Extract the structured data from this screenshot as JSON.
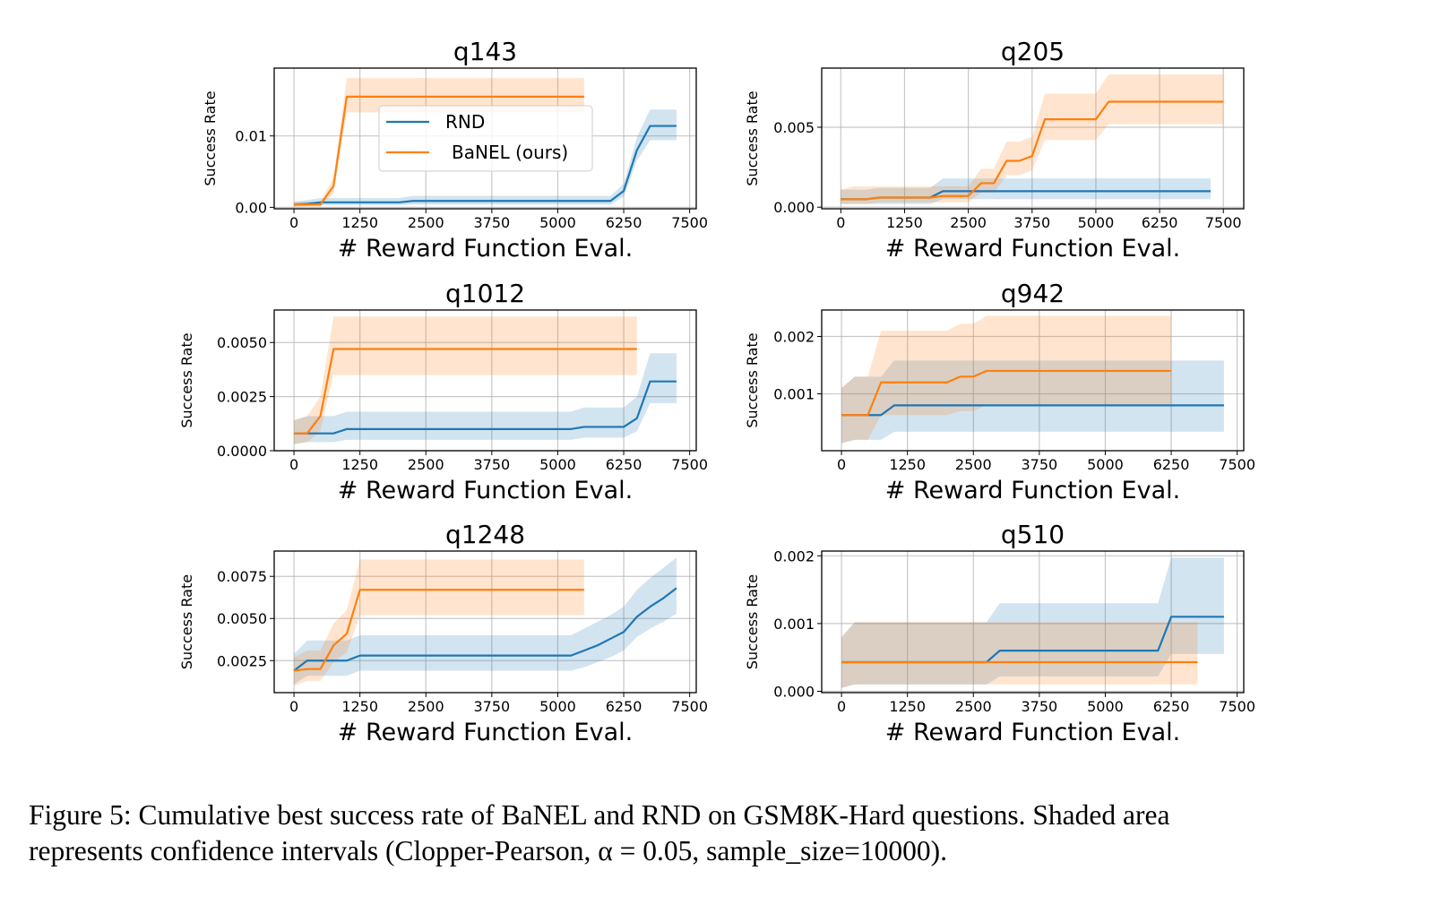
{
  "figure": {
    "caption_line1": "Figure 5: Cumulative best success rate of BaNEL and RND on GSM8K-Hard questions. Shaded area",
    "caption_line2": "represents confidence intervals (Clopper-Pearson, α = 0.05, sample_size=10000)."
  },
  "colors": {
    "RND": "#1f77b4",
    "BaNEL": "#ff7f0e",
    "RND_band": "rgba(31,119,180,0.2)",
    "BaNEL_band": "rgba(255,127,14,0.2)",
    "grid": "#b0b0b0"
  },
  "chart_data": [
    {
      "type": "line",
      "title": "q143",
      "xlabel": "# Reward Function Eval.",
      "ylabel": "Success Rate",
      "xlim": [
        -375,
        7625
      ],
      "ylim": [
        -0.0002,
        0.0195
      ],
      "xticks": [
        0,
        1250,
        2500,
        3750,
        5000,
        6250,
        7500
      ],
      "xtick_labels": [
        "0",
        "1250",
        "2500",
        "3750",
        "5000",
        "6250",
        "7500"
      ],
      "yticks": [
        0.0,
        0.01
      ],
      "ytick_labels": [
        "0.00",
        "0.01"
      ],
      "grid": true,
      "legend": {
        "placement": "upper-center",
        "entries": [
          "RND",
          "BaNEL (ours)"
        ]
      },
      "series": [
        {
          "name": "RND",
          "x": [
            0,
            250,
            500,
            750,
            1000,
            1250,
            1500,
            1750,
            2000,
            2250,
            2500,
            3750,
            5000,
            6000,
            6250,
            6500,
            6750,
            7000,
            7250
          ],
          "y": [
            0.0004,
            0.0005,
            0.0007,
            0.0007,
            0.0007,
            0.0007,
            0.0007,
            0.0007,
            0.0007,
            0.0009,
            0.0009,
            0.0009,
            0.0009,
            0.0009,
            0.0023,
            0.008,
            0.0114,
            0.0114,
            0.0114
          ],
          "lower": [
            0.0001,
            0.0002,
            0.0003,
            0.0003,
            0.0003,
            0.0003,
            0.0003,
            0.0003,
            0.0003,
            0.0004,
            0.0004,
            0.0004,
            0.0004,
            0.0004,
            0.0015,
            0.0065,
            0.0094,
            0.0094,
            0.0094
          ],
          "upper": [
            0.0008,
            0.001,
            0.0013,
            0.0013,
            0.0013,
            0.0013,
            0.0013,
            0.0013,
            0.0013,
            0.0016,
            0.0016,
            0.0016,
            0.0016,
            0.0016,
            0.0033,
            0.0098,
            0.0137,
            0.0137,
            0.0137
          ]
        },
        {
          "name": "BaNEL (ours)",
          "x": [
            0,
            250,
            500,
            750,
            1000,
            1250,
            2500,
            3750,
            5000,
            5500
          ],
          "y": [
            0.0004,
            0.0004,
            0.0004,
            0.003,
            0.0155,
            0.0155,
            0.0155,
            0.0155,
            0.0155,
            0.0155
          ],
          "lower": [
            0.0001,
            0.0001,
            0.0001,
            0.002,
            0.0133,
            0.0133,
            0.0133,
            0.0133,
            0.0133,
            0.0133
          ],
          "upper": [
            0.0008,
            0.0008,
            0.0008,
            0.0042,
            0.0181,
            0.0181,
            0.0181,
            0.0181,
            0.0181,
            0.0181
          ]
        }
      ]
    },
    {
      "type": "line",
      "title": "q205",
      "xlabel": "# Reward Function Eval.",
      "ylabel": "Success Rate",
      "xlim": [
        -375,
        7900
      ],
      "ylim": [
        -0.0001,
        0.0087
      ],
      "xticks": [
        0,
        1250,
        2500,
        3750,
        5000,
        6250,
        7500
      ],
      "xtick_labels": [
        "0",
        "1250",
        "2500",
        "3750",
        "5000",
        "6250",
        "7500"
      ],
      "yticks": [
        0.0,
        0.005
      ],
      "ytick_labels": [
        "0.000",
        "0.005"
      ],
      "grid": true,
      "series": [
        {
          "name": "RND",
          "x": [
            0,
            250,
            500,
            750,
            1000,
            1250,
            1500,
            1750,
            2000,
            2500,
            3750,
            5000,
            6250,
            7250
          ],
          "y": [
            0.0005,
            0.0005,
            0.0005,
            0.0006,
            0.0006,
            0.0006,
            0.0006,
            0.0006,
            0.001,
            0.001,
            0.001,
            0.001,
            0.001,
            0.001
          ],
          "lower": [
            0.0002,
            0.0002,
            0.0002,
            0.0002,
            0.0002,
            0.0002,
            0.0002,
            0.0002,
            0.0005,
            0.0005,
            0.0005,
            0.0005,
            0.0005,
            0.0005
          ],
          "upper": [
            0.0011,
            0.0011,
            0.0011,
            0.0012,
            0.0012,
            0.0012,
            0.0012,
            0.0012,
            0.0018,
            0.0018,
            0.0018,
            0.0018,
            0.0018,
            0.0018
          ]
        },
        {
          "name": "BaNEL (ours)",
          "x": [
            0,
            250,
            500,
            750,
            1000,
            1250,
            1500,
            1750,
            2000,
            2250,
            2500,
            2750,
            3000,
            3250,
            3500,
            3750,
            4000,
            4250,
            4500,
            4750,
            5000,
            5250,
            5500,
            6250,
            7500
          ],
          "y": [
            0.0005,
            0.0005,
            0.0005,
            0.0006,
            0.0006,
            0.0006,
            0.0006,
            0.0006,
            0.0007,
            0.0007,
            0.0007,
            0.0015,
            0.0015,
            0.0029,
            0.0029,
            0.0032,
            0.0055,
            0.0055,
            0.0055,
            0.0055,
            0.0055,
            0.0066,
            0.0066,
            0.0066,
            0.0066
          ],
          "lower": [
            0.0002,
            0.0002,
            0.0002,
            0.0003,
            0.0003,
            0.0003,
            0.0003,
            0.0003,
            0.0003,
            0.0003,
            0.0003,
            0.0009,
            0.0009,
            0.002,
            0.002,
            0.0023,
            0.0042,
            0.0042,
            0.0042,
            0.0042,
            0.0042,
            0.0052,
            0.0052,
            0.0052,
            0.0052
          ],
          "upper": [
            0.0011,
            0.0013,
            0.0013,
            0.0013,
            0.0013,
            0.0013,
            0.0013,
            0.0013,
            0.0013,
            0.0013,
            0.0013,
            0.0024,
            0.0024,
            0.0041,
            0.0041,
            0.0044,
            0.0071,
            0.0071,
            0.0071,
            0.0071,
            0.0071,
            0.0083,
            0.0083,
            0.0083,
            0.0083
          ]
        }
      ]
    },
    {
      "type": "line",
      "title": "q1012",
      "xlabel": "# Reward Function Eval.",
      "ylabel": "Success Rate",
      "xlim": [
        -375,
        7625
      ],
      "ylim": [
        0.0,
        0.0065
      ],
      "xticks": [
        0,
        1250,
        2500,
        3750,
        5000,
        6250,
        7500
      ],
      "xtick_labels": [
        "0",
        "1250",
        "2500",
        "3750",
        "5000",
        "6250",
        "7500"
      ],
      "yticks": [
        0.0,
        0.0025,
        0.005
      ],
      "ytick_labels": [
        "0.0000",
        "0.0025",
        "0.0050"
      ],
      "grid": true,
      "series": [
        {
          "name": "RND",
          "x": [
            0,
            250,
            500,
            750,
            1000,
            1250,
            2500,
            3750,
            5000,
            5250,
            5500,
            6250,
            6500,
            6750,
            7000,
            7250
          ],
          "y": [
            0.0008,
            0.0008,
            0.0008,
            0.0008,
            0.001,
            0.001,
            0.001,
            0.001,
            0.001,
            0.001,
            0.0011,
            0.0011,
            0.0015,
            0.0032,
            0.0032,
            0.0032
          ],
          "lower": [
            0.0003,
            0.0004,
            0.0004,
            0.0004,
            0.0005,
            0.0005,
            0.0005,
            0.0005,
            0.0005,
            0.0005,
            0.0006,
            0.0006,
            0.0009,
            0.0022,
            0.0022,
            0.0022
          ],
          "upper": [
            0.0014,
            0.0016,
            0.0016,
            0.0016,
            0.0018,
            0.0018,
            0.0018,
            0.0018,
            0.0018,
            0.0018,
            0.002,
            0.002,
            0.0025,
            0.0045,
            0.0045,
            0.0045
          ]
        },
        {
          "name": "BaNEL (ours)",
          "x": [
            0,
            250,
            500,
            750,
            1000,
            1250,
            2500,
            3750,
            5000,
            6250,
            6500
          ],
          "y": [
            0.0008,
            0.0008,
            0.0016,
            0.0047,
            0.0047,
            0.0047,
            0.0047,
            0.0047,
            0.0047,
            0.0047,
            0.0047
          ],
          "lower": [
            0.0003,
            0.0004,
            0.0009,
            0.0035,
            0.0035,
            0.0035,
            0.0035,
            0.0035,
            0.0035,
            0.0035,
            0.0035
          ],
          "upper": [
            0.0014,
            0.0016,
            0.0025,
            0.0062,
            0.0062,
            0.0062,
            0.0062,
            0.0062,
            0.0062,
            0.0062,
            0.0062
          ]
        }
      ]
    },
    {
      "type": "line",
      "title": "q942",
      "xlabel": "# Reward Function Eval.",
      "ylabel": "Success Rate",
      "xlim": [
        -375,
        7625
      ],
      "ylim": [
        1e-05,
        0.00246
      ],
      "xticks": [
        0,
        1250,
        2500,
        3750,
        5000,
        6250,
        7500
      ],
      "xtick_labels": [
        "0",
        "1250",
        "2500",
        "3750",
        "5000",
        "6250",
        "7500"
      ],
      "yticks": [
        0.001,
        0.002
      ],
      "ytick_labels": [
        "0.001",
        "0.002"
      ],
      "grid": true,
      "series": [
        {
          "name": "RND",
          "x": [
            0,
            250,
            500,
            750,
            1000,
            1250,
            2500,
            2750,
            3750,
            5000,
            6250,
            7250
          ],
          "y": [
            0.00063,
            0.00063,
            0.00063,
            0.00063,
            0.0008,
            0.0008,
            0.0008,
            0.0008,
            0.0008,
            0.0008,
            0.0008,
            0.0008
          ],
          "lower": [
            0.00014,
            0.0002,
            0.0002,
            0.0002,
            0.00034,
            0.00034,
            0.00034,
            0.00034,
            0.00034,
            0.00034,
            0.00034,
            0.00034
          ],
          "upper": [
            0.0011,
            0.0013,
            0.0013,
            0.0013,
            0.00158,
            0.00158,
            0.00158,
            0.00158,
            0.00158,
            0.00158,
            0.00158,
            0.00158
          ]
        },
        {
          "name": "BaNEL (ours)",
          "x": [
            0,
            250,
            500,
            750,
            1000,
            1250,
            2000,
            2250,
            2500,
            2750,
            3750,
            5000,
            6250
          ],
          "y": [
            0.00063,
            0.00063,
            0.00063,
            0.0012,
            0.0012,
            0.0012,
            0.0012,
            0.0013,
            0.0013,
            0.0014,
            0.0014,
            0.0014,
            0.0014
          ],
          "lower": [
            0.00014,
            0.0002,
            0.0002,
            0.00063,
            0.00063,
            0.00063,
            0.00063,
            0.0007,
            0.0007,
            0.0008,
            0.0008,
            0.0008,
            0.0008
          ],
          "upper": [
            0.0011,
            0.0013,
            0.0013,
            0.0021,
            0.0021,
            0.0021,
            0.0021,
            0.00222,
            0.00222,
            0.00236,
            0.00236,
            0.00236,
            0.00236
          ]
        }
      ]
    },
    {
      "type": "line",
      "title": "q1248",
      "xlabel": "# Reward Function Eval.",
      "ylabel": "Success Rate",
      "xlim": [
        -375,
        7625
      ],
      "ylim": [
        0.0006,
        0.009
      ],
      "xticks": [
        0,
        1250,
        2500,
        3750,
        5000,
        6250,
        7500
      ],
      "xtick_labels": [
        "0",
        "1250",
        "2500",
        "3750",
        "5000",
        "6250",
        "7500"
      ],
      "yticks": [
        0.0025,
        0.005,
        0.0075
      ],
      "ytick_labels": [
        "0.0025",
        "0.0050",
        "0.0075"
      ],
      "grid": true,
      "series": [
        {
          "name": "RND",
          "x": [
            0,
            250,
            500,
            750,
            1000,
            1250,
            2500,
            3750,
            5000,
            5250,
            5500,
            5750,
            6000,
            6250,
            6500,
            6750,
            7000,
            7250
          ],
          "y": [
            0.0019,
            0.0025,
            0.0025,
            0.0025,
            0.0025,
            0.0028,
            0.0028,
            0.0028,
            0.0028,
            0.0028,
            0.0031,
            0.0034,
            0.0038,
            0.0042,
            0.0051,
            0.0057,
            0.0062,
            0.0068
          ],
          "lower": [
            0.0011,
            0.0016,
            0.0016,
            0.0016,
            0.0016,
            0.0019,
            0.0019,
            0.0019,
            0.0019,
            0.0019,
            0.0021,
            0.0024,
            0.0027,
            0.0031,
            0.0039,
            0.0044,
            0.0048,
            0.0053
          ],
          "upper": [
            0.0029,
            0.0037,
            0.0037,
            0.0037,
            0.0037,
            0.004,
            0.004,
            0.004,
            0.004,
            0.004,
            0.0044,
            0.0048,
            0.0052,
            0.0057,
            0.0067,
            0.0074,
            0.008,
            0.0086
          ]
        },
        {
          "name": "BaNEL (ours)",
          "x": [
            0,
            250,
            500,
            750,
            1000,
            1250,
            2500,
            3750,
            5000,
            5500
          ],
          "y": [
            0.0019,
            0.002,
            0.002,
            0.0034,
            0.0041,
            0.0067,
            0.0067,
            0.0067,
            0.0067,
            0.0067
          ],
          "lower": [
            0.001,
            0.0013,
            0.0013,
            0.0024,
            0.003,
            0.0052,
            0.0052,
            0.0052,
            0.0052,
            0.0052
          ],
          "upper": [
            0.0027,
            0.0031,
            0.0031,
            0.0047,
            0.0055,
            0.0085,
            0.0085,
            0.0085,
            0.0085,
            0.0085
          ]
        }
      ]
    },
    {
      "type": "line",
      "title": "q510",
      "xlabel": "# Reward Function Eval.",
      "ylabel": "Success Rate",
      "xlim": [
        -375,
        7625
      ],
      "ylim": [
        -2e-05,
        0.00207
      ],
      "xticks": [
        0,
        1250,
        2500,
        3750,
        5000,
        6250,
        7500
      ],
      "xtick_labels": [
        "0",
        "1250",
        "2500",
        "3750",
        "5000",
        "6250",
        "7500"
      ],
      "yticks": [
        0.0,
        0.001,
        0.002
      ],
      "ytick_labels": [
        "0.000",
        "0.001",
        "0.002"
      ],
      "grid": true,
      "series": [
        {
          "name": "RND",
          "x": [
            0,
            250,
            500,
            1250,
            2500,
            2750,
            3000,
            3750,
            5000,
            6000,
            6250,
            6500,
            7250
          ],
          "y": [
            0.00043,
            0.00043,
            0.00043,
            0.00043,
            0.00043,
            0.00043,
            0.0006,
            0.0006,
            0.0006,
            0.0006,
            0.0011,
            0.0011,
            0.0011
          ],
          "lower": [
            5e-05,
            0.0001,
            0.0001,
            0.0001,
            0.0001,
            0.0001,
            0.00022,
            0.00022,
            0.00022,
            0.00022,
            0.00055,
            0.00055,
            0.00055
          ],
          "upper": [
            0.0008,
            0.00102,
            0.00102,
            0.00102,
            0.00102,
            0.00102,
            0.0013,
            0.0013,
            0.0013,
            0.0013,
            0.00197,
            0.00197,
            0.00197
          ]
        },
        {
          "name": "BaNEL (ours)",
          "x": [
            0,
            250,
            500,
            1250,
            2500,
            3750,
            5000,
            6250,
            6750
          ],
          "y": [
            0.00043,
            0.00043,
            0.00043,
            0.00043,
            0.00043,
            0.00043,
            0.00043,
            0.00043,
            0.00043
          ],
          "lower": [
            5e-05,
            0.0001,
            0.0001,
            0.0001,
            0.0001,
            0.0001,
            0.0001,
            0.0001,
            0.0001
          ],
          "upper": [
            0.0008,
            0.00102,
            0.00102,
            0.00102,
            0.00102,
            0.00102,
            0.00102,
            0.00102,
            0.00102
          ]
        }
      ]
    }
  ]
}
